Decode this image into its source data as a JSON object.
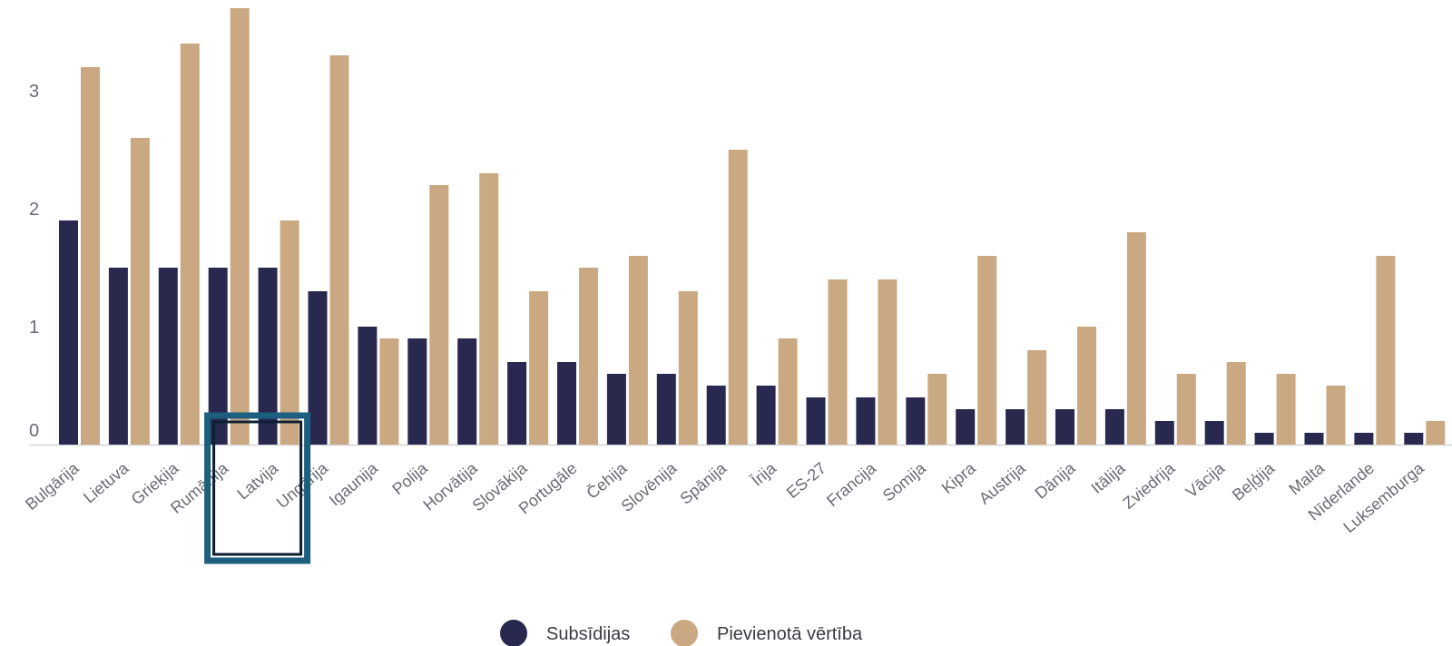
{
  "chart_data": {
    "type": "bar",
    "title": "",
    "xlabel": "",
    "ylabel": "",
    "ylim": [
      0,
      3.6
    ],
    "yticks": [
      0,
      1,
      2,
      3
    ],
    "grid": false,
    "legend_position": "bottom-center",
    "highlight_category": "Latvija",
    "categories": [
      "Bulgārija",
      "Lietuva",
      "Grieķija",
      "Rumānija",
      "Latvija",
      "Ungārija",
      "Igaunija",
      "Polija",
      "Horvātija",
      "Slovākija",
      "Portugāle",
      "Čehija",
      "Slovēnija",
      "Spānija",
      "Īrija",
      "ES-27",
      "Francija",
      "Somija",
      "Kipra",
      "Austrija",
      "Dānija",
      "Itālija",
      "Zviedrija",
      "Vācija",
      "Beļģija",
      "Malta",
      "Nīderlande",
      "Luksemburga"
    ],
    "series": [
      {
        "name": "Subsīdijas",
        "color": "#29294f",
        "values": [
          1.9,
          1.5,
          1.5,
          1.5,
          1.5,
          1.3,
          1.0,
          0.9,
          0.9,
          0.7,
          0.7,
          0.6,
          0.6,
          0.5,
          0.5,
          0.4,
          0.4,
          0.4,
          0.3,
          0.3,
          0.3,
          0.3,
          0.2,
          0.2,
          0.1,
          0.1,
          0.1,
          0.1
        ]
      },
      {
        "name": "Pievienotā vērtība",
        "color": "#caa982",
        "values": [
          3.2,
          2.6,
          3.4,
          3.7,
          1.9,
          3.3,
          0.9,
          2.2,
          2.3,
          1.3,
          1.5,
          1.6,
          1.3,
          2.5,
          0.9,
          1.4,
          1.4,
          0.6,
          1.6,
          0.8,
          1.0,
          1.8,
          0.6,
          0.7,
          0.6,
          0.5,
          1.6,
          0.2
        ]
      }
    ]
  }
}
